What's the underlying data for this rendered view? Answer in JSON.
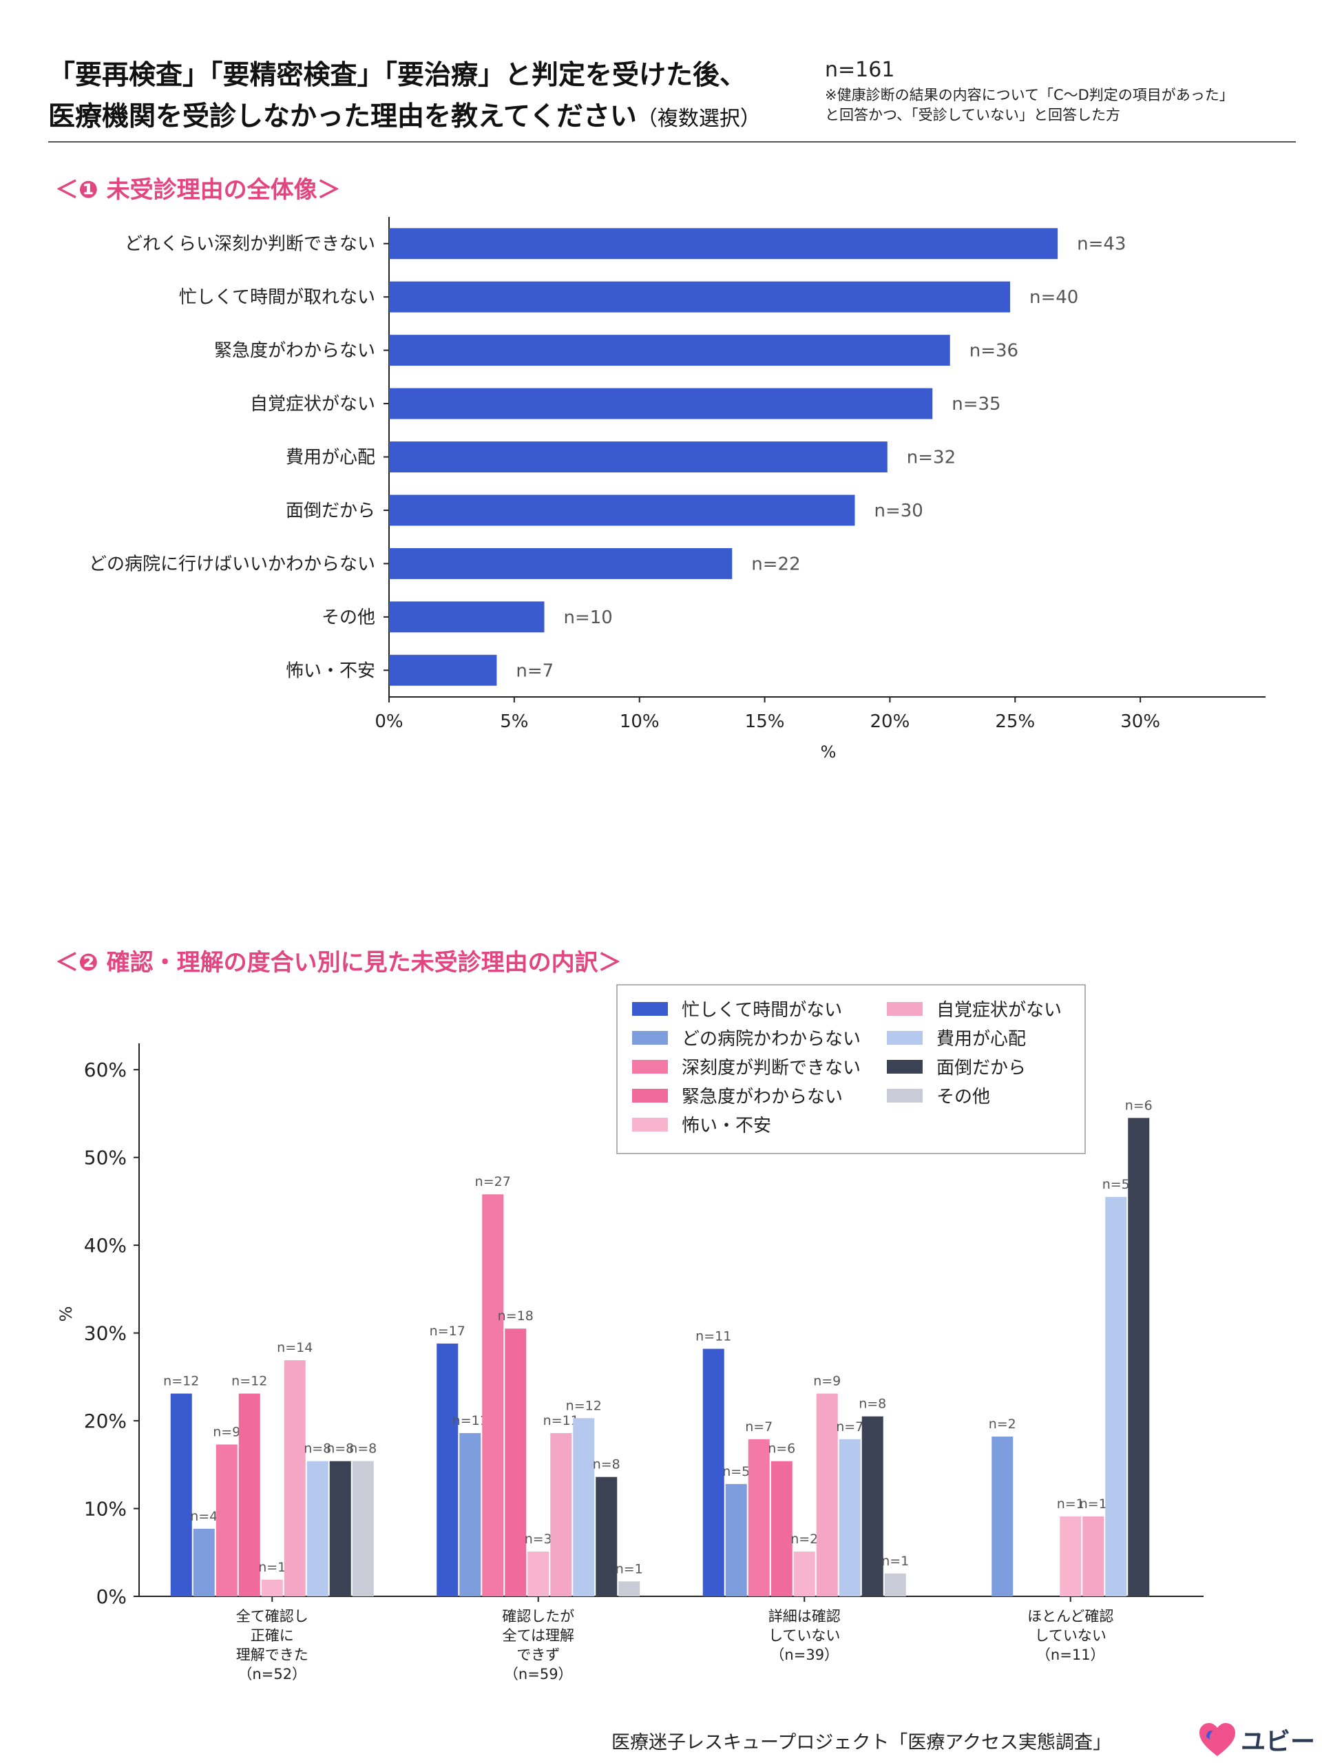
{
  "header": {
    "title_line1": "「要再検査」「要精密検査」「要治療」と判定を受けた後、",
    "title_line2": "医療機関を受診しなかった理由を教えてください",
    "title_suffix": "（複数選択）",
    "n": "n=161",
    "note_line1": "※健康診断の結果の内容について「C〜D判定の項目があった」",
    "note_line2": "と回答かつ、「受診していない」と回答した方"
  },
  "section1_title": "＜❶ 未受診理由の全体像＞",
  "section2_title": "＜❷ 確認・理解の度合い別に見た未受診理由の内訳＞",
  "footer": "医療迷子レスキュープロジェクト「医療アクセス実態調査」",
  "logo_text": "ユビー",
  "colors": {
    "bar_blue": "#3a5bcf",
    "accent_pink": "#e2457f"
  },
  "chart_data": [
    {
      "type": "bar",
      "orientation": "horizontal",
      "categories": [
        "どれくらい深刻か判断できない",
        "忙しくて時間が取れない",
        "緊急度がわからない",
        "自覚症状がない",
        "費用が心配",
        "面倒だから",
        "どの病院に行けばいいかわからない",
        "その他",
        "怖い・不安"
      ],
      "values": [
        26.7,
        24.8,
        22.4,
        21.7,
        19.9,
        18.6,
        13.7,
        6.2,
        4.3
      ],
      "labels": [
        "n=43",
        "n=40",
        "n=36",
        "n=35",
        "n=32",
        "n=30",
        "n=22",
        "n=10",
        "n=7"
      ],
      "xlabel": "%",
      "xlim": [
        0,
        35
      ],
      "xticks": [
        0,
        5,
        10,
        15,
        20,
        25,
        30
      ],
      "xtick_labels": [
        "0%",
        "5%",
        "10%",
        "15%",
        "20%",
        "25%",
        "30%"
      ]
    },
    {
      "type": "bar",
      "orientation": "vertical",
      "ylabel": "%",
      "ylim": [
        0,
        63
      ],
      "yticks": [
        0,
        10,
        20,
        30,
        40,
        50,
        60
      ],
      "ytick_labels": [
        "0%",
        "10%",
        "20%",
        "30%",
        "40%",
        "50%",
        "60%"
      ],
      "legend_position": "top-right",
      "groups": [
        {
          "lines": [
            "全て確認し",
            "正確に",
            "理解できた",
            "（n=52）"
          ]
        },
        {
          "lines": [
            "確認したが",
            "全ては理解",
            "できず",
            "（n=59）"
          ]
        },
        {
          "lines": [
            "詳細は確認",
            "していない",
            "（n=39）"
          ]
        },
        {
          "lines": [
            "ほとんど確認",
            "していない",
            "（n=11）"
          ]
        }
      ],
      "series": [
        {
          "name": "忙しくて時間がない",
          "color": "#3a5bcf",
          "values": [
            23.1,
            28.8,
            28.2,
            0
          ],
          "labels": [
            "n=12",
            "n=17",
            "n=11",
            ""
          ]
        },
        {
          "name": "どの病院かわからない",
          "color": "#7e9ddf",
          "values": [
            7.7,
            18.6,
            12.8,
            18.2
          ],
          "labels": [
            "n=4",
            "n=11",
            "n=5",
            "n=2"
          ]
        },
        {
          "name": "深刻度が判断できない",
          "color": "#f47aa6",
          "values": [
            17.3,
            45.8,
            17.9,
            0
          ],
          "labels": [
            "n=9",
            "n=27",
            "n=7",
            ""
          ]
        },
        {
          "name": "緊急度がわからない",
          "color": "#f06b9b",
          "values": [
            23.1,
            30.5,
            15.4,
            0
          ],
          "labels": [
            "n=12",
            "n=18",
            "n=6",
            ""
          ]
        },
        {
          "name": "怖い・不安",
          "color": "#f8b3cd",
          "values": [
            1.9,
            5.1,
            5.1,
            9.1
          ],
          "labels": [
            "n=1",
            "n=3",
            "n=2",
            "n=1"
          ]
        },
        {
          "name": "自覚症状がない",
          "color": "#f6a6c5",
          "values": [
            26.9,
            18.6,
            23.1,
            9.1
          ],
          "labels": [
            "n=14",
            "n=11",
            "n=9",
            "n=1"
          ]
        },
        {
          "name": "費用が心配",
          "color": "#b5c9ee",
          "values": [
            15.4,
            20.3,
            17.9,
            45.5
          ],
          "labels": [
            "n=8",
            "n=12",
            "n=7",
            "n=5"
          ]
        },
        {
          "name": "面倒だから",
          "color": "#3a4253",
          "values": [
            15.4,
            13.6,
            20.5,
            54.5
          ],
          "labels": [
            "n=8",
            "n=8",
            "n=8",
            "n=6"
          ]
        },
        {
          "name": "その他",
          "color": "#c9ccd6",
          "values": [
            15.4,
            1.7,
            2.6,
            0
          ],
          "labels": [
            "n=8",
            "n=1",
            "n=1",
            ""
          ]
        }
      ]
    }
  ]
}
